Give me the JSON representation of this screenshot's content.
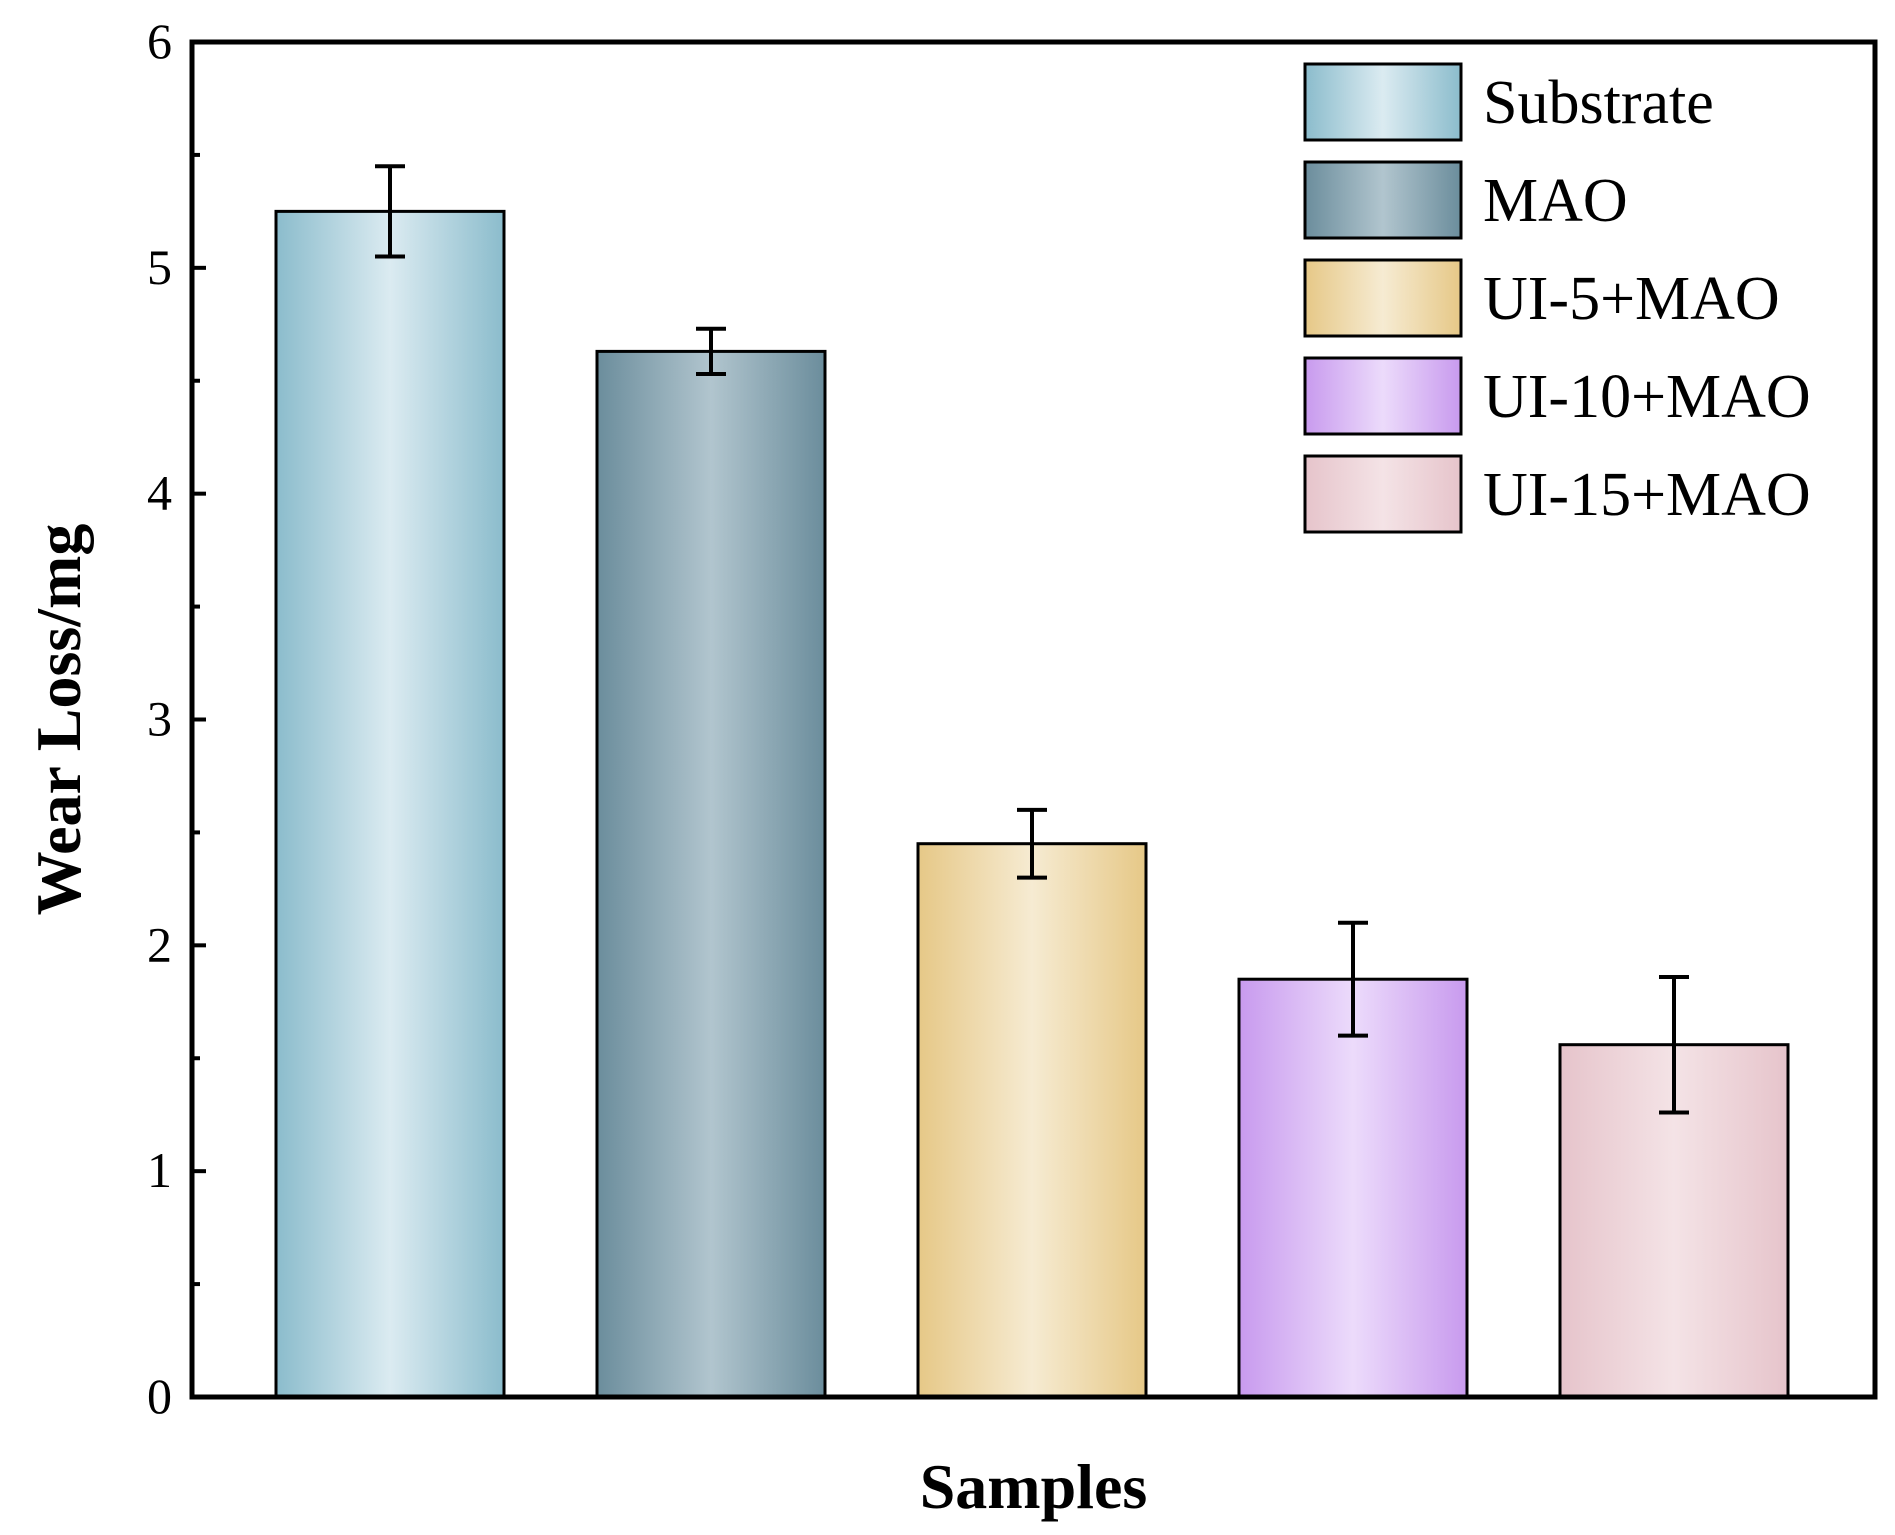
{
  "chart_data": {
    "type": "bar",
    "title": "",
    "xlabel": "Samples",
    "ylabel": "Wear Loss/mg",
    "ylim": [
      0,
      6
    ],
    "yticks": [
      0,
      1,
      2,
      3,
      4,
      5,
      6
    ],
    "grid": false,
    "legend_position": "top-right",
    "categories": [
      "Substrate",
      "MAO",
      "UI-5+MAO",
      "UI-10+MAO",
      "UI-15+MAO"
    ],
    "values": [
      5.25,
      4.63,
      2.45,
      1.85,
      1.56
    ],
    "errors": [
      0.2,
      0.1,
      0.15,
      0.25,
      0.3
    ],
    "legend": [
      "Substrate",
      "MAO",
      "UI-5+MAO",
      "UI-10+MAO",
      "UI-15+MAO"
    ],
    "colors": [
      {
        "edge": "#8bbccc",
        "center": "#dbebf1"
      },
      {
        "edge": "#6b8d9c",
        "center": "#b1c5ce"
      },
      {
        "edge": "#e6c887",
        "center": "#f6ebd2"
      },
      {
        "edge": "#c89aee",
        "center": "#ecdbfb"
      },
      {
        "edge": "#e6c4cb",
        "center": "#f4e3e6"
      }
    ]
  }
}
